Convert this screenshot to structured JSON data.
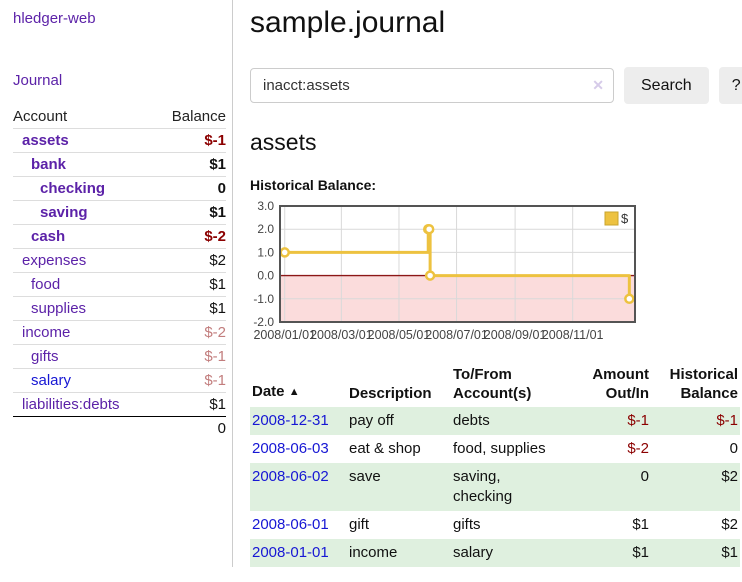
{
  "colors": {
    "link_purple": "#5c22a8",
    "link_blue": "#1717d4",
    "negative_strong": "#8b0000",
    "negative_faded": "#c27d7d",
    "row_green": "#dff0df",
    "divider": "#cccccc",
    "chart_line": "#edc240",
    "chart_zero_line": "#8c1717",
    "chart_negative_fill": "#fbdcdc"
  },
  "sidebar": {
    "brand": "hledger-web",
    "nav": {
      "journal": "Journal"
    },
    "accounts_table": {
      "headers": {
        "account": "Account",
        "balance": "Balance"
      },
      "rows": [
        {
          "name": "assets",
          "balance": "$-1",
          "indent": 0,
          "bold": true,
          "balance_tone": "negative"
        },
        {
          "name": "bank",
          "balance": "$1",
          "indent": 1,
          "bold": true,
          "balance_tone": "normal"
        },
        {
          "name": "checking",
          "balance": "0",
          "indent": 2,
          "bold": true,
          "balance_tone": "normal"
        },
        {
          "name": "saving",
          "balance": "$1",
          "indent": 2,
          "bold": true,
          "balance_tone": "normal"
        },
        {
          "name": "cash",
          "balance": "$-2",
          "indent": 1,
          "bold": true,
          "balance_tone": "negative"
        },
        {
          "name": "expenses",
          "balance": "$2",
          "indent": 0,
          "bold": false,
          "balance_tone": "normal"
        },
        {
          "name": "food",
          "balance": "$1",
          "indent": 1,
          "bold": false,
          "balance_tone": "normal"
        },
        {
          "name": "supplies",
          "balance": "$1",
          "indent": 1,
          "bold": false,
          "balance_tone": "normal"
        },
        {
          "name": "income",
          "balance": "$-2",
          "indent": 0,
          "bold": false,
          "balance_tone": "negative-faded"
        },
        {
          "name": "gifts",
          "balance": "$-1",
          "indent": 1,
          "bold": false,
          "balance_tone": "negative-faded"
        },
        {
          "name": "salary",
          "balance": "$-1",
          "indent": 1,
          "bold": false,
          "balance_tone": "negative-faded",
          "link_tone": "blue"
        },
        {
          "name": "liabilities:debts",
          "balance": "$1",
          "indent": 0,
          "bold": false,
          "balance_tone": "normal"
        }
      ],
      "total": "0"
    }
  },
  "main": {
    "title": "sample.journal",
    "search": {
      "query": "inacct:assets",
      "clear_icon": "✕",
      "search_button": "Search",
      "help_button": "?"
    },
    "account_heading": "assets",
    "chart_label": "Historical Balance:"
  },
  "chart_data": {
    "type": "line",
    "line_style": "step",
    "title": "Historical Balance:",
    "legend": [
      {
        "label": "$",
        "color": "#edc240"
      }
    ],
    "legend_position": "top-right",
    "x": [
      "2008-01-01",
      "2008-06-01",
      "2008-06-02",
      "2008-06-03",
      "2008-12-31"
    ],
    "values": [
      1,
      2,
      2,
      0,
      -1
    ],
    "x_tick_labels": [
      "2008/01/01",
      "2008/03/01",
      "2008/05/01",
      "2008/07/01",
      "2008/09/01",
      "2008/11/01"
    ],
    "y_tick_labels": [
      "3.0",
      "2.0",
      "1.0",
      "0.0",
      "-1.0",
      "-2.0"
    ],
    "ylim": [
      -2,
      3
    ],
    "xlim": [
      "2007-12-27",
      "2009-01-06"
    ],
    "grid": true,
    "zero_line": true,
    "negative_region_shaded": true
  },
  "journal": {
    "headers": {
      "date": "Date",
      "description": "Description",
      "accounts": "To/From Account(s)",
      "amount": "Amount Out/In",
      "balance": "Historical Balance"
    },
    "sort_icon": "▲",
    "rows": [
      {
        "date": "2008-12-31",
        "description": "pay off",
        "accounts": "debts",
        "amount": "$-1",
        "balance": "$-1",
        "amount_tone": "negative",
        "balance_tone": "negative"
      },
      {
        "date": "2008-06-03",
        "description": "eat & shop",
        "accounts": "food, supplies",
        "amount": "$-2",
        "balance": "0",
        "amount_tone": "negative",
        "balance_tone": "normal"
      },
      {
        "date": "2008-06-02",
        "description": "save",
        "accounts": "saving, checking",
        "amount": "0",
        "balance": "$2",
        "amount_tone": "normal",
        "balance_tone": "normal"
      },
      {
        "date": "2008-06-01",
        "description": "gift",
        "accounts": "gifts",
        "amount": "$1",
        "balance": "$2",
        "amount_tone": "normal",
        "balance_tone": "normal"
      },
      {
        "date": "2008-01-01",
        "description": "income",
        "accounts": "salary",
        "amount": "$1",
        "balance": "$1",
        "amount_tone": "normal",
        "balance_tone": "normal"
      }
    ]
  }
}
